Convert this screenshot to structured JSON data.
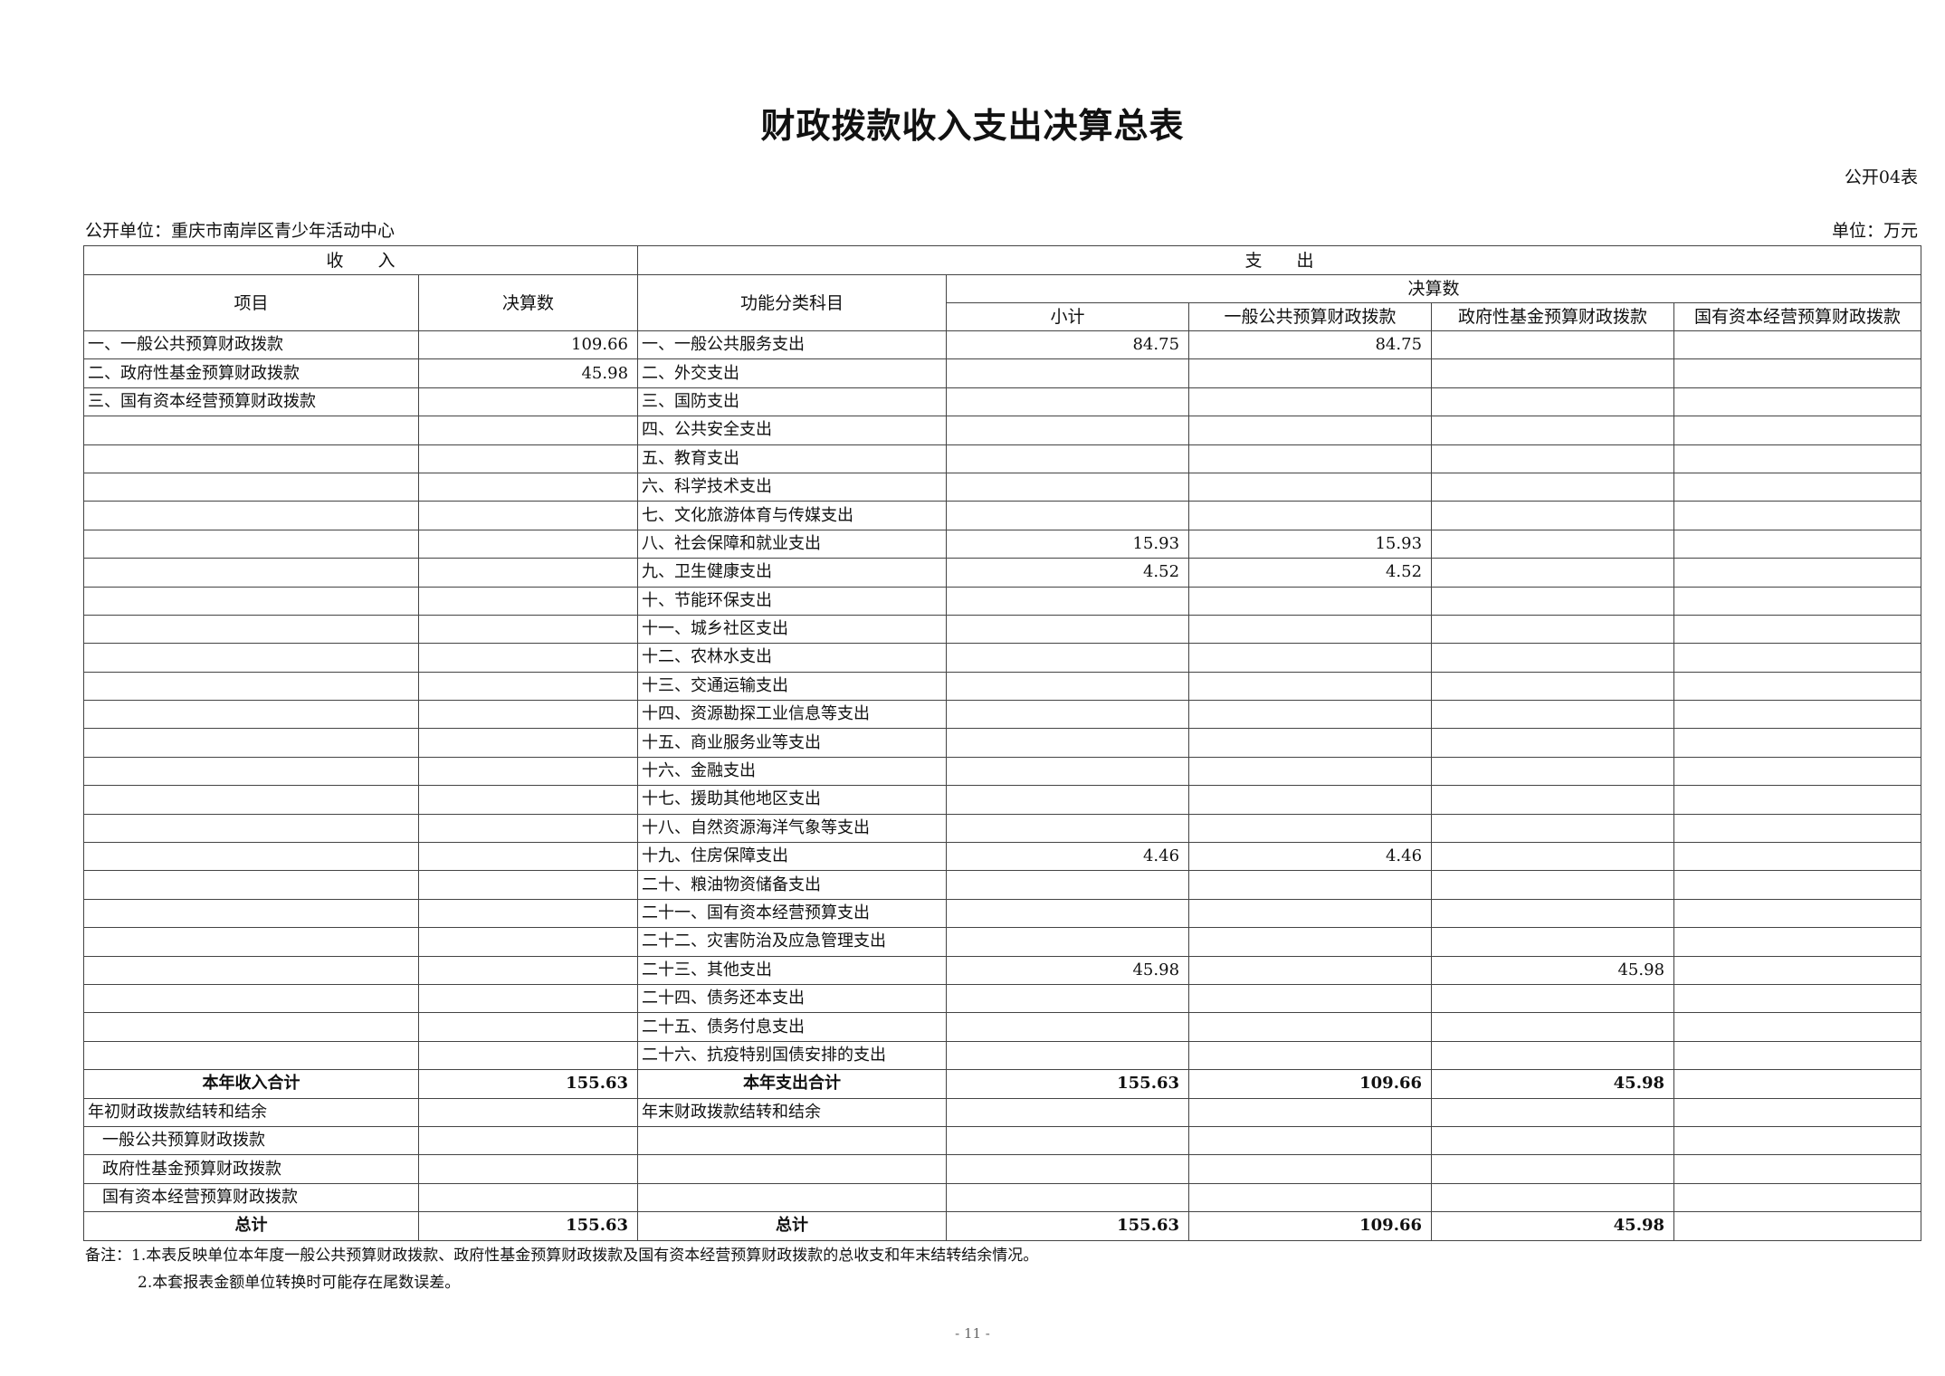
{
  "title": "财政拨款收入支出决算总表",
  "table_no": "公开04表",
  "unit_name": "公开单位：重庆市南岸区青少年活动中心",
  "unit": "单位：万元",
  "header": {
    "income": "收　　入",
    "expense": "支　　出",
    "item": "项目",
    "amount": "决算数",
    "function_class": "功能分类科目",
    "final": "决算数",
    "subtotal": "小计",
    "general": "一般公共预算财政拨款",
    "fund": "政府性基金预算财政拨款",
    "state_capital": "国有资本经营预算财政拨款"
  },
  "rows": [
    [
      "一、一般公共预算财政拨款",
      "109.66",
      "一、一般公共服务支出",
      "84.75",
      "84.75",
      "",
      ""
    ],
    [
      "二、政府性基金预算财政拨款",
      "45.98",
      "二、外交支出",
      "",
      "",
      "",
      ""
    ],
    [
      "三、国有资本经营预算财政拨款",
      "",
      "三、国防支出",
      "",
      "",
      "",
      ""
    ],
    [
      "",
      "",
      "四、公共安全支出",
      "",
      "",
      "",
      ""
    ],
    [
      "",
      "",
      "五、教育支出",
      "",
      "",
      "",
      ""
    ],
    [
      "",
      "",
      "六、科学技术支出",
      "",
      "",
      "",
      ""
    ],
    [
      "",
      "",
      "七、文化旅游体育与传媒支出",
      "",
      "",
      "",
      ""
    ],
    [
      "",
      "",
      "八、社会保障和就业支出",
      "15.93",
      "15.93",
      "",
      ""
    ],
    [
      "",
      "",
      "九、卫生健康支出",
      "4.52",
      "4.52",
      "",
      ""
    ],
    [
      "",
      "",
      "十、节能环保支出",
      "",
      "",
      "",
      ""
    ],
    [
      "",
      "",
      "十一、城乡社区支出",
      "",
      "",
      "",
      ""
    ],
    [
      "",
      "",
      "十二、农林水支出",
      "",
      "",
      "",
      ""
    ],
    [
      "",
      "",
      "十三、交通运输支出",
      "",
      "",
      "",
      ""
    ],
    [
      "",
      "",
      "十四、资源勘探工业信息等支出",
      "",
      "",
      "",
      ""
    ],
    [
      "",
      "",
      "十五、商业服务业等支出",
      "",
      "",
      "",
      ""
    ],
    [
      "",
      "",
      "十六、金融支出",
      "",
      "",
      "",
      ""
    ],
    [
      "",
      "",
      "十七、援助其他地区支出",
      "",
      "",
      "",
      ""
    ],
    [
      "",
      "",
      "十八、自然资源海洋气象等支出",
      "",
      "",
      "",
      ""
    ],
    [
      "",
      "",
      "十九、住房保障支出",
      "4.46",
      "4.46",
      "",
      ""
    ],
    [
      "",
      "",
      "二十、粮油物资储备支出",
      "",
      "",
      "",
      ""
    ],
    [
      "",
      "",
      "二十一、国有资本经营预算支出",
      "",
      "",
      "",
      ""
    ],
    [
      "",
      "",
      "二十二、灾害防治及应急管理支出",
      "",
      "",
      "",
      ""
    ],
    [
      "",
      "",
      "二十三、其他支出",
      "45.98",
      "",
      "45.98",
      ""
    ],
    [
      "",
      "",
      "二十四、债务还本支出",
      "",
      "",
      "",
      ""
    ],
    [
      "",
      "",
      "二十五、债务付息支出",
      "",
      "",
      "",
      ""
    ],
    [
      "",
      "",
      "二十六、抗疫特别国债安排的支出",
      "",
      "",
      "",
      ""
    ],
    [
      "本年收入合计",
      "155.63",
      "本年支出合计",
      "155.63",
      "109.66",
      "45.98",
      ""
    ],
    [
      "年初财政拨款结转和结余",
      "",
      "年末财政拨款结转和结余",
      "",
      "",
      "",
      ""
    ],
    [
      "一般公共预算财政拨款",
      "",
      "",
      "",
      "",
      "",
      ""
    ],
    [
      "政府性基金预算财政拨款",
      "",
      "",
      "",
      "",
      "",
      ""
    ],
    [
      "国有资本经营预算财政拨款",
      "",
      "",
      "",
      "",
      "",
      ""
    ],
    [
      "总计",
      "155.63",
      "总计",
      "155.63",
      "109.66",
      "45.98",
      ""
    ]
  ],
  "notes": [
    "备注：1.本表反映单位本年度一般公共预算财政拨款、政府性基金预算财政拨款及国有资本经营预算财政拨款的总收支和年末结转结余情况。",
    "2.本套报表金额单位转换时可能存在尾数误差。"
  ],
  "page_number": "- 11 -"
}
